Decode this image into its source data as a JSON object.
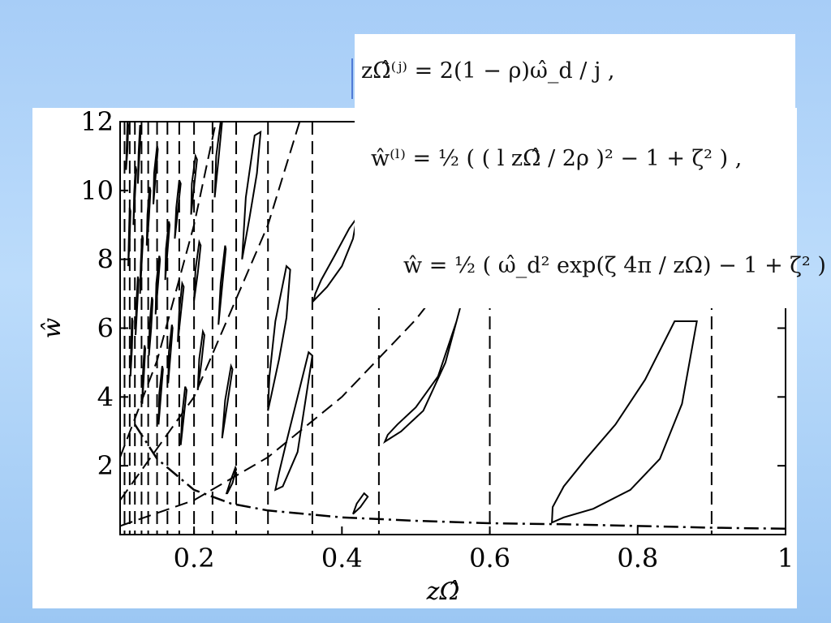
{
  "equations": {
    "omega_j": "zΩ̂⁽ʲ⁾ = 2(1 − ρ)ω̂_d / j ,",
    "w_l": "ŵ⁽ˡ⁾ = ½ ( ( l zΩ̂ / 2ρ )² − 1 + ζ² ) ,",
    "w_curve": "ŵ = ½ ( ω̂_d² exp(ζ 4π / zΩ) − 1 + ζ² )"
  },
  "chart_data": {
    "type": "line",
    "xlabel": "zΩ̂",
    "ylabel": "ŵ",
    "xlim": [
      0.1,
      1.0
    ],
    "ylim": [
      0,
      12
    ],
    "xticks": [
      "0.2",
      "0.4",
      "0.6",
      "0.8",
      "1"
    ],
    "yticks": [
      "2",
      "4",
      "6",
      "8",
      "10",
      "12"
    ],
    "vertical_dashed_x": [
      0.9,
      0.6,
      0.45,
      0.36,
      0.3,
      0.257,
      0.225,
      0.2,
      0.18,
      0.164,
      0.15,
      0.138,
      0.129,
      0.12,
      0.113,
      0.106,
      0.1
    ],
    "parabolas_dashed": [
      {
        "x": [
          0.1,
          0.2,
          0.3,
          0.4,
          0.5,
          0.6,
          0.7,
          0.8
        ],
        "y": [
          0.25,
          1.0,
          2.25,
          4.0,
          6.25,
          9.0,
          12.25,
          16.0
        ]
      },
      {
        "x": [
          0.1,
          0.2,
          0.3,
          0.4
        ],
        "y": [
          1.0,
          4.0,
          9.0,
          16.0
        ]
      },
      {
        "x": [
          0.1,
          0.15,
          0.2,
          0.25
        ],
        "y": [
          2.25,
          5.06,
          9.0,
          14.06
        ]
      }
    ],
    "threshold_dashdot": {
      "x": [
        0.12,
        0.15,
        0.2,
        0.25,
        0.3,
        0.4,
        0.5,
        0.6,
        0.7,
        0.8,
        0.9,
        1.0
      ],
      "y": [
        3.2,
        2.2,
        1.3,
        0.9,
        0.7,
        0.5,
        0.4,
        0.33,
        0.3,
        0.25,
        0.2,
        0.17
      ]
    },
    "instability_tongues": [
      {
        "x": [
          0.684,
          0.7,
          0.74,
          0.79,
          0.83,
          0.86,
          0.88,
          0.85,
          0.81,
          0.77,
          0.73,
          0.7,
          0.685,
          0.684
        ],
        "y": [
          0.35,
          0.5,
          0.75,
          1.3,
          2.2,
          3.8,
          6.2,
          6.2,
          4.5,
          3.2,
          2.2,
          1.4,
          0.8,
          0.35
        ]
      },
      {
        "x": [
          0.458,
          0.48,
          0.51,
          0.54,
          0.56,
          0.555,
          0.53,
          0.5,
          0.475,
          0.462,
          0.458
        ],
        "y": [
          2.7,
          3.0,
          3.6,
          5.0,
          6.6,
          6.2,
          4.6,
          3.7,
          3.2,
          2.9,
          2.7
        ]
      },
      {
        "x": [
          0.362,
          0.38,
          0.4,
          0.415,
          0.42,
          0.41,
          0.39,
          0.372,
          0.364,
          0.362
        ],
        "y": [
          6.8,
          7.2,
          7.8,
          8.6,
          9.2,
          8.9,
          8.1,
          7.4,
          7.0,
          6.8
        ]
      },
      {
        "x": [
          0.415,
          0.425,
          0.435,
          0.43,
          0.42,
          0.415
        ],
        "y": [
          0.6,
          0.8,
          1.1,
          1.2,
          0.9,
          0.6
        ]
      },
      {
        "x": [
          0.31,
          0.32,
          0.34,
          0.35,
          0.36,
          0.355,
          0.34,
          0.325,
          0.315,
          0.31
        ],
        "y": [
          1.3,
          1.4,
          2.4,
          3.8,
          5.2,
          5.3,
          4.0,
          2.7,
          1.8,
          1.3
        ]
      },
      {
        "x": [
          0.3,
          0.305,
          0.315,
          0.325,
          0.33,
          0.325,
          0.31,
          0.302,
          0.3
        ],
        "y": [
          3.6,
          4.1,
          5.1,
          6.3,
          7.7,
          7.8,
          6.2,
          4.6,
          3.6
        ]
      },
      {
        "x": [
          0.265,
          0.275,
          0.285,
          0.29,
          0.282,
          0.27,
          0.265
        ],
        "y": [
          8.0,
          9.2,
          10.5,
          11.7,
          11.6,
          9.8,
          8.0
        ]
      },
      {
        "x": [
          0.244,
          0.25,
          0.256,
          0.257,
          0.252,
          0.245,
          0.244
        ],
        "y": [
          1.2,
          1.6,
          1.95,
          1.9,
          1.5,
          1.2,
          1.2
        ]
      },
      {
        "x": [
          0.238,
          0.245,
          0.252,
          0.25,
          0.242,
          0.238
        ],
        "y": [
          2.8,
          3.8,
          4.8,
          4.9,
          3.9,
          2.8
        ]
      },
      {
        "x": [
          0.233,
          0.238,
          0.243,
          0.242,
          0.236,
          0.233
        ],
        "y": [
          6.1,
          7.2,
          8.3,
          8.4,
          7.3,
          6.1
        ]
      },
      {
        "x": [
          0.228,
          0.233,
          0.238,
          0.236,
          0.23,
          0.228
        ],
        "y": [
          9.8,
          10.9,
          12.0,
          12.0,
          11.0,
          9.8
        ]
      },
      {
        "x": [
          0.205,
          0.21,
          0.214,
          0.212,
          0.207,
          0.205
        ],
        "y": [
          4.2,
          5.0,
          5.8,
          5.9,
          5.1,
          4.2
        ]
      },
      {
        "x": [
          0.2,
          0.205,
          0.209,
          0.207,
          0.202,
          0.2
        ],
        "y": [
          6.8,
          7.6,
          8.4,
          8.5,
          7.7,
          6.8
        ]
      },
      {
        "x": [
          0.196,
          0.2,
          0.204,
          0.202,
          0.197,
          0.196
        ],
        "y": [
          9.3,
          10.1,
          10.9,
          11.0,
          10.2,
          9.3
        ]
      },
      {
        "x": [
          0.182,
          0.186,
          0.19,
          0.188,
          0.184,
          0.182
        ],
        "y": [
          2.6,
          3.4,
          4.2,
          4.3,
          3.5,
          2.6
        ]
      },
      {
        "x": [
          0.178,
          0.182,
          0.186,
          0.184,
          0.18,
          0.178
        ],
        "y": [
          5.6,
          6.4,
          7.2,
          7.3,
          6.5,
          5.6
        ]
      },
      {
        "x": [
          0.174,
          0.178,
          0.182,
          0.18,
          0.176,
          0.174
        ],
        "y": [
          8.6,
          9.4,
          10.2,
          10.3,
          9.5,
          8.6
        ]
      },
      {
        "x": [
          0.165,
          0.168,
          0.171,
          0.17,
          0.166,
          0.165
        ],
        "y": [
          4.4,
          5.2,
          6.0,
          6.1,
          5.3,
          4.4
        ]
      },
      {
        "x": [
          0.161,
          0.164,
          0.167,
          0.166,
          0.162,
          0.161
        ],
        "y": [
          7.4,
          8.2,
          9.0,
          9.1,
          8.3,
          7.4
        ]
      },
      {
        "x": [
          0.152,
          0.155,
          0.158,
          0.157,
          0.153,
          0.152
        ],
        "y": [
          3.2,
          4.0,
          4.8,
          4.9,
          4.1,
          3.2
        ]
      },
      {
        "x": [
          0.148,
          0.151,
          0.154,
          0.153,
          0.149,
          0.148
        ],
        "y": [
          6.4,
          7.2,
          8.0,
          8.1,
          7.3,
          6.4
        ]
      },
      {
        "x": [
          0.145,
          0.148,
          0.151,
          0.15,
          0.146,
          0.145
        ],
        "y": [
          9.6,
          10.4,
          11.2,
          11.3,
          10.5,
          9.6
        ]
      },
      {
        "x": [
          0.139,
          0.142,
          0.144,
          0.143,
          0.14,
          0.139
        ],
        "y": [
          5.2,
          6.0,
          6.8,
          6.9,
          6.1,
          5.2
        ]
      },
      {
        "x": [
          0.136,
          0.139,
          0.141,
          0.14,
          0.137,
          0.136
        ],
        "y": [
          8.4,
          9.2,
          10.0,
          10.1,
          9.3,
          8.4
        ]
      },
      {
        "x": [
          0.13,
          0.132,
          0.134,
          0.133,
          0.131,
          0.13
        ],
        "y": [
          3.8,
          4.6,
          5.4,
          5.5,
          4.7,
          3.8
        ]
      },
      {
        "x": [
          0.127,
          0.129,
          0.131,
          0.13,
          0.128,
          0.127
        ],
        "y": [
          7.0,
          7.8,
          8.6,
          8.7,
          7.9,
          7.0
        ]
      },
      {
        "x": [
          0.124,
          0.126,
          0.128,
          0.127,
          0.125,
          0.124
        ],
        "y": [
          10.2,
          11.0,
          11.8,
          11.9,
          11.1,
          10.2
        ]
      },
      {
        "x": [
          0.121,
          0.123,
          0.125,
          0.124,
          0.122,
          0.121
        ],
        "y": [
          5.8,
          6.6,
          7.4,
          7.5,
          6.7,
          5.8
        ]
      },
      {
        "x": [
          0.118,
          0.12,
          0.122,
          0.121,
          0.119,
          0.118
        ],
        "y": [
          9.0,
          9.8,
          10.6,
          10.7,
          9.9,
          9.0
        ]
      },
      {
        "x": [
          0.114,
          0.116,
          0.117,
          0.116,
          0.115,
          0.114
        ],
        "y": [
          4.6,
          5.4,
          6.2,
          6.3,
          5.5,
          4.6
        ]
      },
      {
        "x": [
          0.111,
          0.113,
          0.114,
          0.113,
          0.112,
          0.111
        ],
        "y": [
          7.8,
          8.6,
          9.4,
          9.5,
          8.7,
          7.8
        ]
      },
      {
        "x": [
          0.108,
          0.11,
          0.111,
          0.11,
          0.109,
          0.108
        ],
        "y": [
          10.6,
          11.2,
          11.9,
          12.0,
          11.3,
          10.6
        ]
      }
    ]
  }
}
